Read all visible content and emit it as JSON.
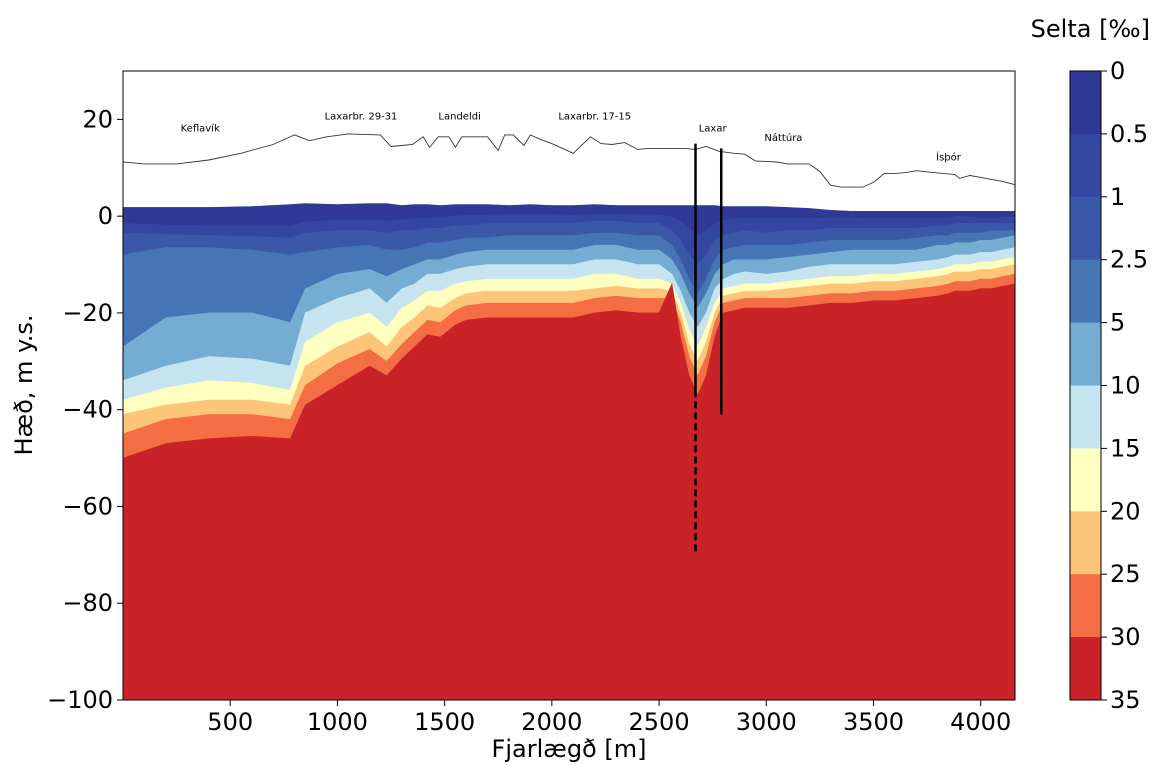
{
  "chart_data": {
    "type": "area",
    "xlabel": "Fjarlægð [m]",
    "ylabel": "Hæð, m y.s.",
    "xlim": [
      0,
      4160
    ],
    "ylim": [
      -100,
      30
    ],
    "xticks": [
      500,
      1000,
      1500,
      2000,
      2500,
      3000,
      3500,
      4000
    ],
    "yticks": [
      20,
      0,
      -20,
      -40,
      -60,
      -80,
      -100
    ],
    "xtick_labels": [
      "500",
      "1000",
      "1500",
      "2000",
      "2500",
      "3000",
      "3500",
      "4000"
    ],
    "ytick_labels": [
      "20",
      "0",
      "−20",
      "−40",
      "−60",
      "−80",
      "−100"
    ],
    "colorbar": {
      "title": "Selta [‰]",
      "levels": [
        0,
        0.5,
        1,
        2.5,
        5,
        10,
        15,
        20,
        25,
        30,
        35
      ],
      "level_labels": [
        "0",
        "0.5",
        "1",
        "2.5",
        "5",
        "10",
        "15",
        "20",
        "25",
        "30",
        "35"
      ],
      "colors": [
        "#313695",
        "#3a4ea3",
        "#4164ad",
        "#4a7bb7",
        "#74add1",
        "#abd9e9",
        "#e0f3f8",
        "#ffffbf",
        "#fee090",
        "#f46d43",
        "#c92327"
      ],
      "band_colors": [
        "#2f3996",
        "#3447a0",
        "#3a57a8",
        "#4575b4",
        "#74add1",
        "#c6e4ef",
        "#ffffbf",
        "#fdc57a",
        "#f46d43",
        "#c92327"
      ]
    },
    "ground_surface": {
      "x": [
        0,
        100,
        250,
        400,
        550,
        700,
        800,
        870,
        950,
        1050,
        1200,
        1250,
        1300,
        1350,
        1400,
        1430,
        1470,
        1520,
        1550,
        1580,
        1620,
        1700,
        1750,
        1780,
        1820,
        1870,
        1900,
        1950,
        2000,
        2100,
        2180,
        2230,
        2280,
        2340,
        2400,
        2450,
        2500,
        2560,
        2620,
        2670,
        2720,
        2780,
        2850,
        2900,
        2950,
        3050,
        3100,
        3200,
        3250,
        3300,
        3350,
        3450,
        3500,
        3550,
        3600,
        3650,
        3700,
        3780,
        3830,
        3880,
        3900,
        3950,
        4000,
        4050,
        4100,
        4160
      ],
      "y": [
        11.2,
        10.8,
        10.8,
        11.6,
        13,
        14.8,
        16.8,
        15.6,
        16.4,
        17,
        16.8,
        14.4,
        14.6,
        14.8,
        16.4,
        14.2,
        16.4,
        16.4,
        14.2,
        16.4,
        16.4,
        16.4,
        13.6,
        16.8,
        16.8,
        14.6,
        16.8,
        15.8,
        15.0,
        13.0,
        16.4,
        15.0,
        14.8,
        15.2,
        13.8,
        14.0,
        14.0,
        14.0,
        14.0,
        13.8,
        14.4,
        13.4,
        13.0,
        12.8,
        11.4,
        11.2,
        10.8,
        10.8,
        9.2,
        6.4,
        6.0,
        6.0,
        7.0,
        8.8,
        8.8,
        9.0,
        9.4,
        9.0,
        8.8,
        8.6,
        7.8,
        8.4,
        8.0,
        7.6,
        7.2,
        6.5
      ]
    },
    "contour_boundaries": {
      "x": [
        0,
        200,
        400,
        600,
        780,
        850,
        1000,
        1150,
        1230,
        1300,
        1360,
        1420,
        1480,
        1550,
        1600,
        1700,
        1800,
        1900,
        2000,
        2100,
        2200,
        2300,
        2400,
        2500,
        2560,
        2600,
        2640,
        2680,
        2720,
        2760,
        2800,
        2850,
        2900,
        3000,
        3100,
        3200,
        3300,
        3400,
        3500,
        3600,
        3700,
        3800,
        3850,
        3880,
        3950,
        4000,
        4050,
        4100,
        4160
      ],
      "series": [
        {
          "level": 0,
          "y": [
            1.8,
            1.8,
            1.8,
            2.0,
            2.4,
            2.6,
            2.4,
            2.6,
            2.6,
            2.2,
            2.4,
            2.4,
            2.2,
            2.4,
            2.4,
            2.4,
            2.2,
            2.4,
            2.2,
            2.2,
            2.4,
            2.2,
            2.2,
            2.2,
            2.2,
            2.2,
            2.2,
            2.2,
            2.2,
            2.2,
            2.0,
            2.0,
            2.0,
            2.0,
            1.8,
            1.6,
            1.2,
            1.0,
            1.0,
            1.0,
            1.0,
            1.0,
            1.0,
            1.0,
            1.0,
            1.0,
            1.0,
            1.0,
            1.0
          ]
        },
        {
          "level": 0.5,
          "y": [
            -1.5,
            -1.8,
            -2.0,
            -2.0,
            -2.0,
            -1.2,
            -0.8,
            -0.8,
            -1.0,
            -0.8,
            -0.5,
            -0.5,
            -0.2,
            0.0,
            0.2,
            0.2,
            0.4,
            0.4,
            0.4,
            0.2,
            0.4,
            0.4,
            0.4,
            0.2,
            -0.2,
            -1.0,
            -2.5,
            -4.0,
            -3.0,
            -1.5,
            -0.8,
            -0.5,
            -0.5,
            -0.5,
            -0.5,
            -0.5,
            -0.4,
            -0.4,
            -0.5,
            -0.5,
            -0.5,
            -0.5,
            -0.5,
            0.0,
            -0.2,
            -0.5,
            -0.5,
            -0.3,
            -0.2
          ]
        },
        {
          "level": 1,
          "y": [
            -3.5,
            -3.8,
            -4.0,
            -4.2,
            -4.5,
            -3.5,
            -3.0,
            -3.0,
            -3.5,
            -3.0,
            -3.0,
            -2.5,
            -2.5,
            -2.0,
            -2.0,
            -1.5,
            -1.5,
            -1.5,
            -1.5,
            -1.5,
            -1.0,
            -1.0,
            -1.5,
            -1.5,
            -3.0,
            -5.0,
            -8.0,
            -10.0,
            -8.0,
            -5.0,
            -4.0,
            -3.5,
            -3.0,
            -3.5,
            -3.0,
            -3.0,
            -2.5,
            -2.5,
            -2.5,
            -2.5,
            -2.5,
            -2.0,
            -2.0,
            -1.5,
            -1.5,
            -1.5,
            -1.5,
            -1.5,
            -1.5
          ]
        },
        {
          "level": 2.5,
          "y": [
            -8.0,
            -6.5,
            -6.5,
            -7.0,
            -8.0,
            -7.5,
            -6.5,
            -6.0,
            -7.0,
            -7.0,
            -6.5,
            -5.5,
            -5.5,
            -5.0,
            -4.5,
            -4.5,
            -4.0,
            -4.0,
            -4.0,
            -4.0,
            -3.5,
            -3.5,
            -4.0,
            -4.0,
            -6.0,
            -9.0,
            -13.0,
            -16.0,
            -13.0,
            -9.0,
            -7.0,
            -6.5,
            -6.0,
            -6.0,
            -6.0,
            -5.5,
            -5.0,
            -5.0,
            -5.0,
            -5.0,
            -4.5,
            -4.0,
            -4.0,
            -3.5,
            -3.5,
            -3.5,
            -3.0,
            -3.0,
            -3.0
          ]
        },
        {
          "level": 5,
          "y": [
            -27.0,
            -21.0,
            -20.0,
            -20.0,
            -22.0,
            -15.0,
            -12.0,
            -11.0,
            -12.5,
            -11.0,
            -10.0,
            -9.0,
            -9.0,
            -8.0,
            -7.5,
            -7.0,
            -7.0,
            -7.0,
            -7.0,
            -7.0,
            -6.0,
            -6.0,
            -7.0,
            -7.0,
            -9.0,
            -12.0,
            -16.0,
            -19.0,
            -16.0,
            -12.0,
            -10.0,
            -9.0,
            -9.0,
            -9.0,
            -8.5,
            -8.0,
            -7.5,
            -7.0,
            -7.0,
            -7.0,
            -7.0,
            -6.0,
            -6.0,
            -5.5,
            -5.5,
            -5.0,
            -5.0,
            -4.5,
            -4.0
          ]
        },
        {
          "level": 10,
          "y": [
            -34.0,
            -31.0,
            -29.0,
            -29.5,
            -31.0,
            -20.0,
            -17.0,
            -15.0,
            -18.0,
            -15.0,
            -14.0,
            -12.0,
            -12.0,
            -11.0,
            -10.5,
            -10.0,
            -10.0,
            -10.0,
            -10.0,
            -10.0,
            -9.0,
            -9.0,
            -10.0,
            -10.0,
            -12.0,
            -15.5,
            -20.0,
            -23.0,
            -20.0,
            -15.0,
            -13.0,
            -12.0,
            -11.5,
            -12.0,
            -11.5,
            -10.5,
            -10.0,
            -10.0,
            -10.0,
            -10.0,
            -9.5,
            -9.0,
            -8.5,
            -8.0,
            -8.0,
            -7.5,
            -7.5,
            -7.0,
            -6.5
          ]
        },
        {
          "level": 15,
          "y": [
            -38.0,
            -35.5,
            -34.0,
            -34.5,
            -36.0,
            -26.0,
            -22.0,
            -20.0,
            -23.0,
            -19.0,
            -17.5,
            -15.5,
            -15.5,
            -14.0,
            -13.5,
            -13.0,
            -13.0,
            -13.0,
            -13.0,
            -13.0,
            -12.0,
            -12.0,
            -13.0,
            -13.0,
            -14.0,
            -18.0,
            -23.5,
            -27.0,
            -23.0,
            -18.0,
            -15.0,
            -14.5,
            -14.0,
            -14.0,
            -13.5,
            -13.0,
            -12.5,
            -12.5,
            -12.0,
            -12.0,
            -11.5,
            -11.0,
            -10.5,
            -10.0,
            -10.0,
            -9.5,
            -9.5,
            -9.0,
            -8.5
          ]
        },
        {
          "level": 20,
          "y": [
            -41.0,
            -39.0,
            -38.0,
            -38.0,
            -39.0,
            -31.0,
            -27.0,
            -24.0,
            -27.0,
            -23.0,
            -21.0,
            -18.5,
            -19.0,
            -17.0,
            -16.0,
            -15.5,
            -15.5,
            -15.5,
            -15.5,
            -15.5,
            -15.0,
            -14.5,
            -15.0,
            -15.0,
            -15.5,
            -20.0,
            -26.5,
            -30.0,
            -26.0,
            -20.0,
            -16.5,
            -16.0,
            -15.5,
            -15.5,
            -15.0,
            -14.5,
            -14.0,
            -14.0,
            -13.5,
            -13.5,
            -13.0,
            -12.5,
            -12.0,
            -11.5,
            -11.5,
            -11.0,
            -11.0,
            -10.5,
            -10.0
          ]
        },
        {
          "level": 25,
          "y": [
            -45.0,
            -42.0,
            -41.0,
            -41.0,
            -42.0,
            -35.0,
            -30.5,
            -27.5,
            -30.0,
            -26.5,
            -24.0,
            -21.5,
            -22.0,
            -19.5,
            -18.5,
            -18.0,
            -18.0,
            -18.0,
            -18.0,
            -18.0,
            -17.0,
            -16.5,
            -17.0,
            -17.0,
            -17.0,
            -22.0,
            -29.0,
            -33.0,
            -29.0,
            -22.0,
            -18.0,
            -17.5,
            -17.0,
            -17.0,
            -17.0,
            -16.5,
            -16.0,
            -16.0,
            -15.5,
            -15.5,
            -15.0,
            -14.5,
            -14.0,
            -13.5,
            -13.5,
            -13.0,
            -13.0,
            -12.5,
            -12.0
          ]
        },
        {
          "level": 30,
          "y": [
            -50.0,
            -47.0,
            -46.0,
            -45.5,
            -46.0,
            -39.0,
            -35.0,
            -31.0,
            -33.0,
            -29.5,
            -27.0,
            -24.5,
            -25.0,
            -22.5,
            -21.5,
            -21.0,
            -21.0,
            -21.0,
            -21.0,
            -21.0,
            -20.0,
            -19.5,
            -20.0,
            -20.0,
            -14.0,
            -25.0,
            -33.0,
            -37.0,
            -33.0,
            -25.0,
            -20.0,
            -19.5,
            -19.0,
            -19.0,
            -19.0,
            -18.5,
            -18.0,
            -18.0,
            -17.5,
            -17.5,
            -17.0,
            -16.5,
            -16.0,
            -15.5,
            -15.5,
            -15.0,
            -15.0,
            -14.5,
            -14.0
          ]
        }
      ]
    },
    "locations": [
      {
        "name": "Keflavík",
        "x": 360,
        "y": 17.5
      },
      {
        "name": "Laxarbr. 29-31",
        "x": 1110,
        "y": 20.0
      },
      {
        "name": "Landeldi",
        "x": 1570,
        "y": 20.0
      },
      {
        "name": "Laxarbr. 17-15",
        "x": 2200,
        "y": 20.0
      },
      {
        "name": "Laxar",
        "x": 2750,
        "y": 17.5
      },
      {
        "name": "Náttúra",
        "x": 3080,
        "y": 15.5
      },
      {
        "name": "Ísþór",
        "x": 3850,
        "y": 11.5
      }
    ],
    "wells": [
      {
        "x": 2670,
        "solid_top": 15.0,
        "solid_bottom": -36.0,
        "dashed_bottom": -69.5
      },
      {
        "x": 2790,
        "solid_top": 14.0,
        "solid_bottom": -41.0,
        "dashed_bottom": -41.0
      }
    ]
  }
}
